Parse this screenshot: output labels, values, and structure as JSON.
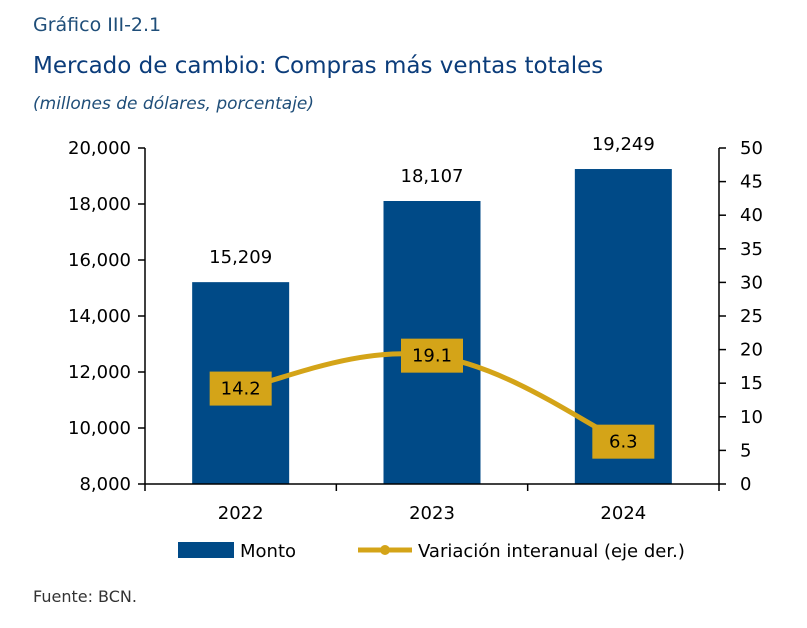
{
  "header": {
    "label": "Gráfico III-2.1",
    "title": "Mercado de cambio: Compras más ventas totales",
    "subtitle": "(millones de dólares, porcentaje)"
  },
  "source": "Fuente: BCN.",
  "colors": {
    "bar": "#004a87",
    "line": "#d4a418",
    "line_label_bg": "#d4a418"
  },
  "chart_data": {
    "type": "bar",
    "categories": [
      "2022",
      "2023",
      "2024"
    ],
    "series": [
      {
        "name": "Monto",
        "type": "bar",
        "axis": "left",
        "values": [
          15209,
          18107,
          19249
        ],
        "labels": [
          "15,209",
          "18,107",
          "19,249"
        ]
      },
      {
        "name": "Variación interanual (eje der.)",
        "type": "line",
        "axis": "right",
        "values": [
          14.2,
          19.1,
          6.3
        ],
        "labels": [
          "14.2",
          "19.1",
          "6.3"
        ]
      }
    ],
    "y_left": {
      "range": [
        8000,
        20000
      ],
      "ticks": [
        "8,000",
        "10,000",
        "12,000",
        "14,000",
        "16,000",
        "18,000",
        "20,000"
      ],
      "tick_values": [
        8000,
        10000,
        12000,
        14000,
        16000,
        18000,
        20000
      ]
    },
    "y_right": {
      "range": [
        0,
        50
      ],
      "ticks": [
        "0",
        "5",
        "10",
        "15",
        "20",
        "25",
        "30",
        "35",
        "40",
        "45",
        "50"
      ],
      "tick_values": [
        0,
        5,
        10,
        15,
        20,
        25,
        30,
        35,
        40,
        45,
        50
      ]
    },
    "grid": false,
    "legend_position": "bottom"
  }
}
